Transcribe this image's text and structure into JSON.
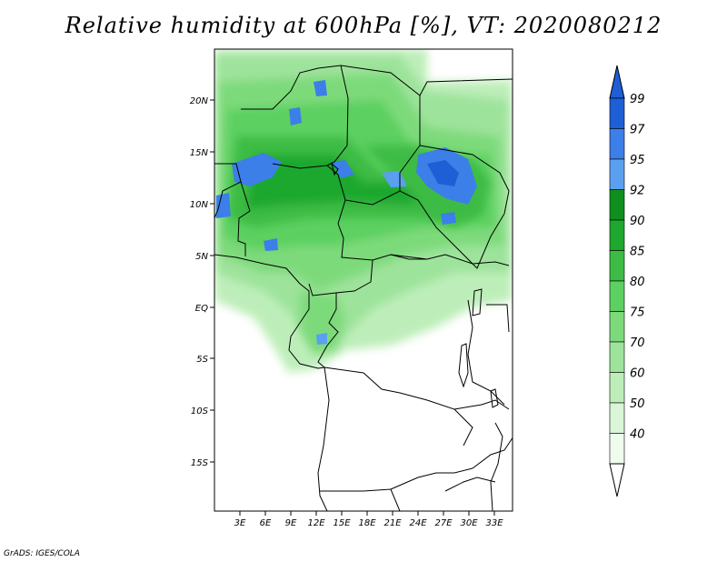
{
  "title": "Relative humidity at 600hPa [%], VT: 2020080212",
  "credit": "GrADS: IGES/COLA",
  "lat_ticks": [
    "20N",
    "15N",
    "10N",
    "5N",
    "EQ",
    "5S",
    "10S",
    "15S"
  ],
  "lon_ticks": [
    "3E",
    "6E",
    "9E",
    "12E",
    "15E",
    "18E",
    "21E",
    "24E",
    "27E",
    "30E",
    "33E"
  ],
  "colorbar": {
    "labels": [
      "99",
      "97",
      "95",
      "92",
      "90",
      "85",
      "80",
      "75",
      "70",
      "60",
      "50",
      "40"
    ],
    "colors": [
      "#1e5fd6",
      "#3c7fe8",
      "#5a9ff0",
      "#0f8f1e",
      "#1fa82e",
      "#3cbc45",
      "#5cd060",
      "#7dda7a",
      "#9ee39b",
      "#bdeeb9",
      "#d9f6d6",
      "#eefbed"
    ]
  },
  "map_extent": {
    "lon": [
      0.5,
      35.5
    ],
    "lat": [
      -20,
      25
    ]
  }
}
